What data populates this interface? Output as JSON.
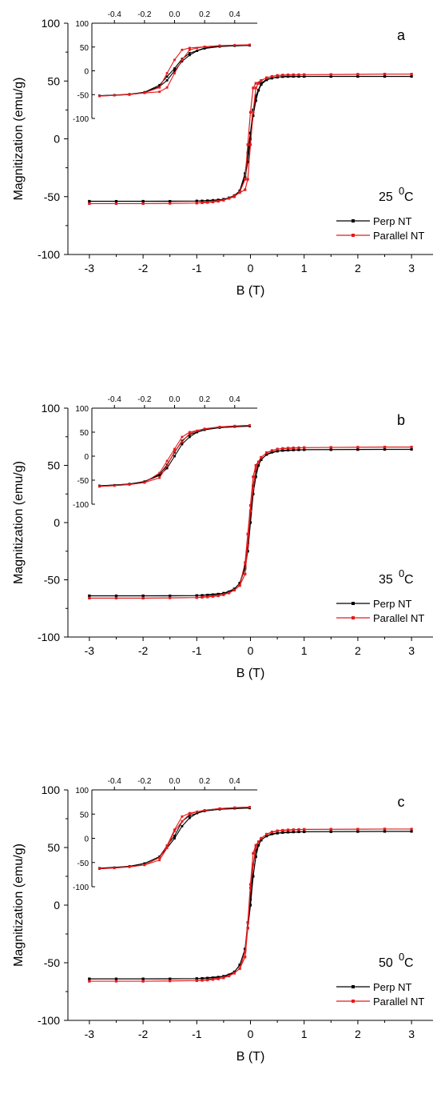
{
  "chart_data": [
    {
      "type": "line",
      "panel": "a",
      "temperature_label": "25",
      "temperature_unit": "C",
      "temperature_superscript": "0",
      "xlabel": "B (T)",
      "ylabel": "Magnitization (emu/g)",
      "xlim": [
        -3.4,
        3.4
      ],
      "ylim": [
        -100,
        100
      ],
      "x_ticks": [
        -3,
        -2,
        -1,
        0,
        1,
        2,
        3
      ],
      "y_ticks": [
        -100,
        -50,
        0,
        50,
        100
      ],
      "series": [
        {
          "name": "Perp NT",
          "color": "#000000",
          "x": [
            -3,
            -2.5,
            -2,
            -1.5,
            -1,
            -0.9,
            -0.8,
            -0.7,
            -0.6,
            -0.5,
            -0.4,
            -0.3,
            -0.2,
            -0.1,
            -0.05,
            0,
            0.05,
            0.1,
            0.15,
            0.2,
            0.3,
            0.4,
            0.5,
            0.6,
            0.7,
            0.8,
            0.9,
            1,
            1.5,
            2,
            2.5,
            3,
            2.5,
            2,
            1.5,
            1,
            0.5,
            0.3,
            0.2,
            0.1,
            0.05,
            0,
            -0.05,
            -0.1,
            -0.2,
            -0.3,
            -0.5,
            -1,
            -2,
            -3
          ],
          "y": [
            -54,
            -54,
            -54,
            -54,
            -53.8,
            -53.7,
            -53.5,
            -53.2,
            -52.8,
            -52.2,
            -51,
            -49,
            -45,
            -33,
            -20,
            0,
            20,
            33,
            42,
            47,
            51,
            52.5,
            53.3,
            53.8,
            54,
            54,
            54,
            54,
            54,
            54,
            54,
            54,
            54,
            54,
            54,
            54,
            53.5,
            51.5,
            48,
            37,
            25,
            5,
            -12,
            -30,
            -45,
            -50,
            -52.5,
            -53.8,
            -54,
            -54
          ]
        },
        {
          "name": "Parallel NT",
          "color": "#e31a1c",
          "x": [
            -3,
            -2.5,
            -2,
            -1.5,
            -1,
            -0.9,
            -0.8,
            -0.7,
            -0.6,
            -0.5,
            -0.4,
            -0.3,
            -0.2,
            -0.1,
            -0.05,
            0,
            0.05,
            0.1,
            0.15,
            0.2,
            0.3,
            0.4,
            0.5,
            0.6,
            0.7,
            0.8,
            0.9,
            1,
            1.5,
            2,
            2.5,
            3,
            2.5,
            2,
            1.5,
            1,
            0.5,
            0.3,
            0.2,
            0.1,
            0.05,
            0,
            -0.05,
            -0.1,
            -0.2,
            -0.3,
            -0.5,
            -1,
            -2,
            -3
          ],
          "y": [
            -56,
            -56,
            -56,
            -55.8,
            -55.5,
            -55.3,
            -55,
            -54.6,
            -54,
            -53,
            -51.5,
            -49.5,
            -46.5,
            -44,
            -35,
            -5,
            23,
            44,
            48,
            50.5,
            52.8,
            54,
            54.8,
            55.2,
            55.4,
            55.5,
            55.5,
            55.5,
            55.6,
            55.8,
            56,
            56,
            56,
            55.8,
            55.6,
            55.5,
            54.8,
            52.8,
            50.5,
            48,
            44,
            23,
            -5,
            -35,
            -46,
            -50,
            -53,
            -55.5,
            -56,
            -56
          ]
        }
      ],
      "legend": [
        "Perp NT",
        "Parallel NT"
      ],
      "legend_position": "bottom-right",
      "inset": {
        "xlim": [
          -0.55,
          0.55
        ],
        "ylim": [
          -100,
          100
        ],
        "x_ticks": [
          -0.4,
          -0.2,
          0.0,
          0.2,
          0.4
        ],
        "x_tick_labels": [
          "-0.4",
          "-0.2",
          "0.0",
          "0.2",
          "0.4"
        ],
        "y_ticks": [
          100,
          50,
          0,
          -50,
          -100
        ]
      }
    },
    {
      "type": "line",
      "panel": "b",
      "temperature_label": "35",
      "temperature_unit": "C",
      "temperature_superscript": "0",
      "xlabel": "B (T)",
      "ylabel": "Magnitization (emu/g)",
      "xlim": [
        -3.4,
        3.4
      ],
      "ylim": [
        -100,
        100
      ],
      "x_ticks": [
        -3,
        -2,
        -1,
        0,
        1,
        2,
        3
      ],
      "y_ticks": [
        -100,
        -50,
        0,
        50,
        100
      ],
      "series": [
        {
          "name": "Perp NT",
          "color": "#000000",
          "x": [
            -3,
            -2.5,
            -2,
            -1.5,
            -1,
            -0.9,
            -0.8,
            -0.7,
            -0.6,
            -0.5,
            -0.4,
            -0.3,
            -0.2,
            -0.1,
            -0.05,
            0,
            0.05,
            0.1,
            0.15,
            0.2,
            0.3,
            0.4,
            0.5,
            0.6,
            0.7,
            0.8,
            0.9,
            1,
            1.5,
            2,
            2.5,
            3,
            2.5,
            2,
            1.5,
            1,
            0.5,
            0.3,
            0.2,
            0.1,
            0.05,
            0,
            -0.05,
            -0.1,
            -0.2,
            -0.3,
            -0.5,
            -1,
            -2,
            -3
          ],
          "y": [
            -64,
            -64,
            -64,
            -64,
            -63.8,
            -63.6,
            -63.3,
            -63,
            -62.5,
            -61.8,
            -60.5,
            -58,
            -53,
            -40,
            -25,
            0,
            25,
            40,
            50,
            55,
            59.5,
            61.5,
            62.5,
            63,
            63.3,
            63.5,
            63.6,
            63.7,
            63.8,
            63.9,
            64,
            64,
            64,
            63.9,
            63.8,
            63.7,
            62.5,
            59.5,
            55,
            45,
            32,
            8,
            -18,
            -38,
            -53,
            -58,
            -61.8,
            -63.8,
            -64,
            -64
          ]
        },
        {
          "name": "Parallel NT",
          "color": "#e31a1c",
          "x": [
            -3,
            -2.5,
            -2,
            -1.5,
            -1,
            -0.9,
            -0.8,
            -0.7,
            -0.6,
            -0.5,
            -0.4,
            -0.3,
            -0.2,
            -0.1,
            -0.05,
            0,
            0.05,
            0.1,
            0.15,
            0.2,
            0.3,
            0.4,
            0.5,
            0.6,
            0.7,
            0.8,
            0.9,
            1,
            1.5,
            2,
            2.5,
            3,
            2.5,
            2,
            1.5,
            1,
            0.5,
            0.3,
            0.2,
            0.1,
            0.05,
            0,
            -0.05,
            -0.1,
            -0.2,
            -0.3,
            -0.5,
            -1,
            -2,
            -3
          ],
          "y": [
            -66,
            -66,
            -66,
            -65.8,
            -65.5,
            -65.3,
            -65,
            -64.5,
            -64,
            -63,
            -61.5,
            -59,
            -55,
            -45,
            -20,
            10,
            30,
            47,
            53,
            57,
            61,
            63,
            64.2,
            64.8,
            65.1,
            65.3,
            65.4,
            65.5,
            65.7,
            65.8,
            66,
            66,
            66,
            65.8,
            65.7,
            65.5,
            64.2,
            61,
            57,
            50,
            40,
            15,
            -10,
            -35,
            -55,
            -59,
            -63,
            -65.5,
            -66,
            -66
          ]
        }
      ],
      "legend": [
        "Perp NT",
        "Parallel NT"
      ],
      "legend_position": "bottom-right",
      "inset": {
        "xlim": [
          -0.55,
          0.55
        ],
        "ylim": [
          -100,
          100
        ],
        "x_ticks": [
          -0.4,
          -0.2,
          0.0,
          0.2,
          0.4
        ],
        "x_tick_labels": [
          "-0.4",
          "-0.2",
          "0.0",
          "0.2",
          "0.4"
        ],
        "y_ticks": [
          100,
          50,
          0,
          -50,
          -100
        ]
      }
    },
    {
      "type": "line",
      "panel": "c",
      "temperature_label": "50",
      "temperature_unit": "C",
      "temperature_superscript": "0",
      "xlabel": "B (T)",
      "ylabel": "Magnitization (emu/g)",
      "xlim": [
        -3.4,
        3.4
      ],
      "ylim": [
        -100,
        100
      ],
      "x_ticks": [
        -3,
        -2,
        -1,
        0,
        1,
        2,
        3
      ],
      "y_ticks": [
        -100,
        -50,
        0,
        50,
        100
      ],
      "series": [
        {
          "name": "Perp NT",
          "color": "#000000",
          "x": [
            -3,
            -2.5,
            -2,
            -1.5,
            -1,
            -0.9,
            -0.8,
            -0.7,
            -0.6,
            -0.5,
            -0.4,
            -0.3,
            -0.2,
            -0.1,
            -0.05,
            0,
            0.05,
            0.1,
            0.15,
            0.2,
            0.3,
            0.4,
            0.5,
            0.6,
            0.7,
            0.8,
            0.9,
            1,
            1.5,
            2,
            2.5,
            3,
            2.5,
            2,
            1.5,
            1,
            0.5,
            0.3,
            0.2,
            0.1,
            0.05,
            0,
            -0.05,
            -0.1,
            -0.2,
            -0.3,
            -0.5,
            -1,
            -2,
            -3
          ],
          "y": [
            -64,
            -64,
            -64,
            -64,
            -63.8,
            -63.6,
            -63.3,
            -63,
            -62.5,
            -61.8,
            -60.5,
            -58,
            -52,
            -38,
            -20,
            0,
            25,
            42,
            52,
            56.5,
            60,
            61.8,
            62.5,
            63,
            63.3,
            63.5,
            63.6,
            63.7,
            63.8,
            63.9,
            64,
            64,
            64,
            63.9,
            63.8,
            63.7,
            62.5,
            60,
            56.5,
            47,
            35,
            5,
            -15,
            -38,
            -52,
            -58,
            -61.8,
            -63.8,
            -64,
            -64
          ]
        },
        {
          "name": "Parallel NT",
          "color": "#e31a1c",
          "x": [
            -3,
            -2.5,
            -2,
            -1.5,
            -1,
            -0.9,
            -0.8,
            -0.7,
            -0.6,
            -0.5,
            -0.4,
            -0.3,
            -0.2,
            -0.1,
            -0.05,
            0,
            0.05,
            0.1,
            0.15,
            0.2,
            0.3,
            0.4,
            0.5,
            0.6,
            0.7,
            0.8,
            0.9,
            1,
            1.5,
            2,
            2.5,
            3,
            2.5,
            2,
            1.5,
            1,
            0.5,
            0.3,
            0.2,
            0.1,
            0.05,
            0,
            -0.05,
            -0.1,
            -0.2,
            -0.3,
            -0.5,
            -1,
            -2,
            -3
          ],
          "y": [
            -66,
            -66,
            -66,
            -65.8,
            -65.5,
            -65.3,
            -65,
            -64.5,
            -64,
            -63,
            -61.5,
            -59,
            -55,
            -45,
            -20,
            15,
            35,
            50,
            55,
            58,
            61.5,
            63.5,
            64.5,
            65,
            65.3,
            65.5,
            65.6,
            65.7,
            65.8,
            65.9,
            66,
            66,
            66,
            65.9,
            65.8,
            65.7,
            64.5,
            61.5,
            58,
            52,
            45,
            18,
            -15,
            -40,
            -55,
            -59,
            -63,
            -65.5,
            -66,
            -66
          ]
        }
      ],
      "legend": [
        "Perp NT",
        "Parallel NT"
      ],
      "legend_position": "bottom-right",
      "inset": {
        "xlim": [
          -0.55,
          0.55
        ],
        "ylim": [
          -100,
          100
        ],
        "x_ticks": [
          -0.4,
          -0.2,
          0.0,
          0.2,
          0.4
        ],
        "x_tick_labels": [
          "-0.4",
          "-0.2",
          "0.0",
          "0.2",
          "0.4"
        ],
        "y_ticks": [
          100,
          50,
          0,
          -50,
          -100
        ]
      }
    }
  ]
}
